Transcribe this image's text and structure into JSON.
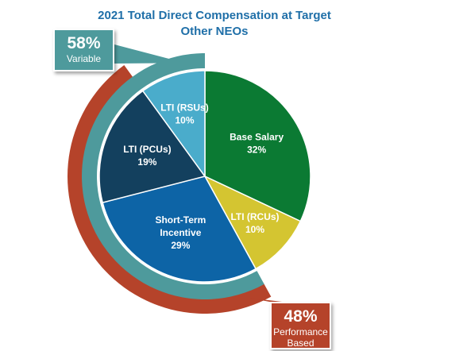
{
  "chart_data": {
    "type": "pie",
    "title_lines": [
      "2021 Total Direct Compensation at Target",
      "Other NEOs"
    ],
    "slices": [
      {
        "label": [
          "Base Salary"
        ],
        "value": 32,
        "value_label": "32%",
        "color": "#0b7a33",
        "text_color": "#ffffff"
      },
      {
        "label": [
          "LTI (RCUs)"
        ],
        "value": 10,
        "value_label": "10%",
        "color": "#d4c531",
        "text_color": "#ffffff"
      },
      {
        "label": [
          "Short-Term",
          "Incentive"
        ],
        "value": 29,
        "value_label": "29%",
        "color": "#0d64a6",
        "text_color": "#ffffff"
      },
      {
        "label": [
          "LTI (PCUs)"
        ],
        "value": 19,
        "value_label": "19%",
        "color": "#13405e",
        "text_color": "#ffffff"
      },
      {
        "label": [
          "LTI (RSUs)"
        ],
        "value": 10,
        "value_label": "10%",
        "color": "#4aaccb",
        "text_color": "#ffffff"
      }
    ],
    "arcs": [
      {
        "name": "variable",
        "value": 58,
        "color": "#4e9a9c"
      },
      {
        "name": "performance-based",
        "value": 48,
        "color": "#b5432a"
      }
    ]
  },
  "callouts": {
    "variable": {
      "pct": "58%",
      "label": "Variable",
      "color": "#4e9a9c"
    },
    "performance": {
      "pct": "48%",
      "label_lines": [
        "Performance",
        "Based"
      ],
      "color": "#b5432a"
    }
  }
}
